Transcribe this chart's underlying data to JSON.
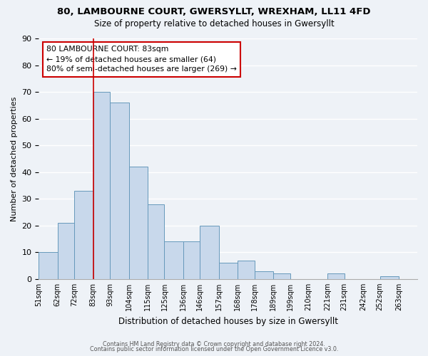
{
  "title1": "80, LAMBOURNE COURT, GWERSYLLT, WREXHAM, LL11 4FD",
  "title2": "Size of property relative to detached houses in Gwersyllt",
  "xlabel": "Distribution of detached houses by size in Gwersyllt",
  "ylabel": "Number of detached properties",
  "bin_labels": [
    "51sqm",
    "62sqm",
    "72sqm",
    "83sqm",
    "93sqm",
    "104sqm",
    "115sqm",
    "125sqm",
    "136sqm",
    "146sqm",
    "157sqm",
    "168sqm",
    "178sqm",
    "189sqm",
    "199sqm",
    "210sqm",
    "221sqm",
    "231sqm",
    "242sqm",
    "252sqm",
    "263sqm"
  ],
  "bin_edges": [
    51,
    62,
    72,
    83,
    93,
    104,
    115,
    125,
    136,
    146,
    157,
    168,
    178,
    189,
    199,
    210,
    221,
    231,
    242,
    252,
    263,
    274
  ],
  "bar_heights": [
    10,
    21,
    33,
    70,
    66,
    42,
    28,
    14,
    14,
    20,
    6,
    7,
    3,
    2,
    0,
    0,
    2,
    0,
    0,
    1,
    0
  ],
  "bar_color": "#c8d8eb",
  "bar_edge_color": "#6699bb",
  "marker_value": 83,
  "marker_color": "#cc0000",
  "annotation_title": "80 LAMBOURNE COURT: 83sqm",
  "annotation_line1": "← 19% of detached houses are smaller (64)",
  "annotation_line2": "80% of semi-detached houses are larger (269) →",
  "annotation_box_facecolor": "#ffffff",
  "annotation_box_edgecolor": "#cc0000",
  "ylim": [
    0,
    90
  ],
  "yticks": [
    0,
    10,
    20,
    30,
    40,
    50,
    60,
    70,
    80,
    90
  ],
  "footer1": "Contains HM Land Registry data © Crown copyright and database right 2024.",
  "footer2": "Contains public sector information licensed under the Open Government Licence v3.0.",
  "background_color": "#eef2f7",
  "grid_color": "#ffffff"
}
